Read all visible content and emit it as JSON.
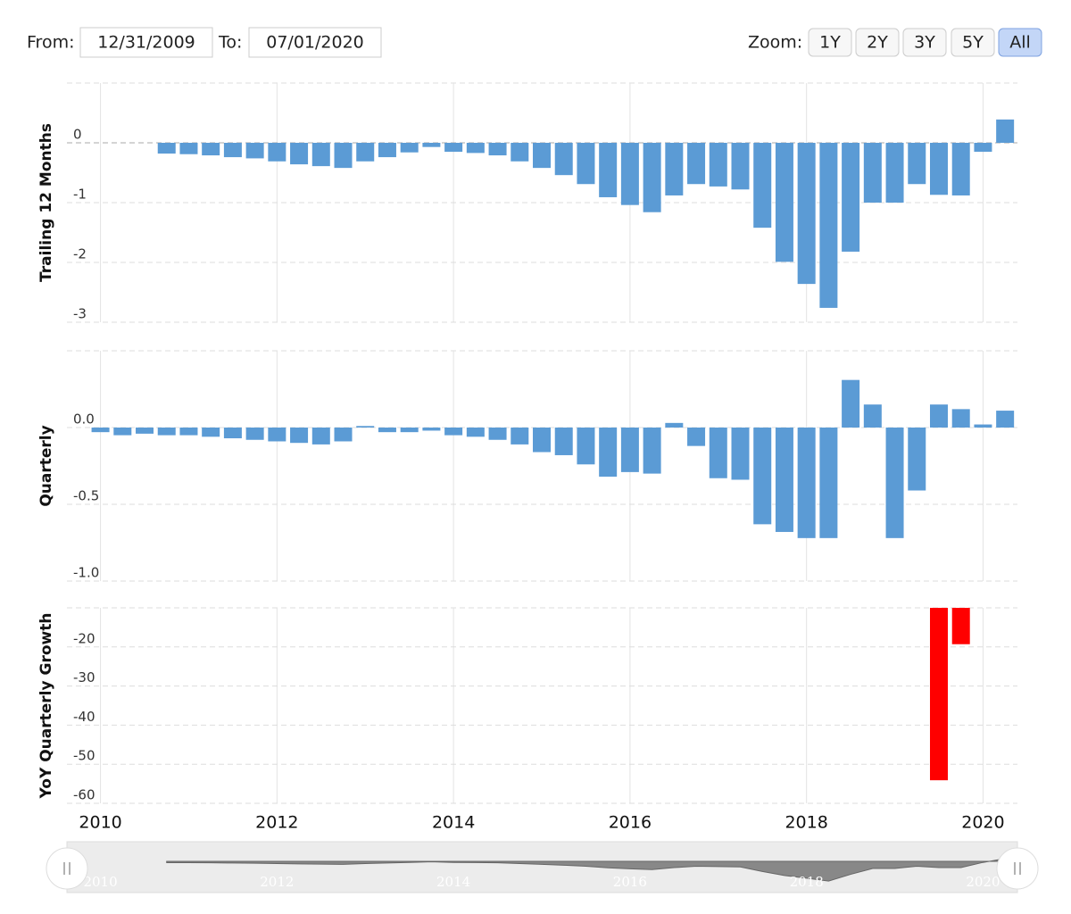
{
  "range_selector": {
    "from_label": "From:",
    "from": "12/31/2009",
    "to_label": "To:",
    "to": "07/01/2020",
    "zoom_label": "Zoom:",
    "buttons": [
      "1Y",
      "2Y",
      "3Y",
      "5Y",
      "All"
    ],
    "selected": 4
  },
  "chart_data": [
    {
      "type": "bar",
      "y_label": "Trailing 12 Months",
      "color": "#5b9bd5",
      "x": [
        2010.75,
        2011,
        2011.25,
        2011.5,
        2011.75,
        2012,
        2012.25,
        2012.5,
        2012.75,
        2013,
        2013.25,
        2013.5,
        2013.75,
        2014,
        2014.25,
        2014.5,
        2014.75,
        2015,
        2015.25,
        2015.5,
        2015.75,
        2016,
        2016.25,
        2016.5,
        2016.75,
        2017,
        2017.25,
        2017.5,
        2017.75,
        2018,
        2018.25,
        2018.5,
        2018.75,
        2019,
        2019.25,
        2019.5,
        2019.75,
        2020,
        2020.25
      ],
      "values": [
        -0.18,
        -0.19,
        -0.21,
        -0.24,
        -0.26,
        -0.31,
        -0.36,
        -0.39,
        -0.42,
        -0.31,
        -0.24,
        -0.16,
        -0.07,
        -0.15,
        -0.17,
        -0.21,
        -0.31,
        -0.42,
        -0.54,
        -0.69,
        -0.91,
        -1.04,
        -1.16,
        -0.88,
        -0.69,
        -0.73,
        -0.78,
        -1.42,
        -1.99,
        -2.36,
        -2.76,
        -1.82,
        -1.0,
        -1.0,
        -0.69,
        -0.87,
        -0.88,
        -0.15,
        0.39
      ],
      "ylim": [
        -3,
        1
      ],
      "yticks": [
        -3,
        -2,
        -1,
        0
      ],
      "xlim": [
        2009.62,
        2020.39
      ],
      "xticks": [
        2010,
        2012,
        2014,
        2016,
        2018,
        2020
      ],
      "grid": true
    },
    {
      "type": "bar",
      "y_label": "Quarterly",
      "color": "#5b9bd5",
      "x": [
        2010,
        2010.25,
        2010.5,
        2010.75,
        2011,
        2011.25,
        2011.5,
        2011.75,
        2012,
        2012.25,
        2012.5,
        2012.75,
        2013,
        2013.25,
        2013.5,
        2013.75,
        2014,
        2014.25,
        2014.5,
        2014.75,
        2015,
        2015.25,
        2015.5,
        2015.75,
        2016,
        2016.25,
        2016.5,
        2016.75,
        2017,
        2017.25,
        2017.5,
        2017.75,
        2018,
        2018.25,
        2018.5,
        2018.75,
        2019,
        2019.25,
        2019.5,
        2019.75,
        2020,
        2020.25
      ],
      "values": [
        -0.03,
        -0.05,
        -0.04,
        -0.05,
        -0.05,
        -0.06,
        -0.07,
        -0.08,
        -0.09,
        -0.1,
        -0.11,
        -0.09,
        0.01,
        -0.03,
        -0.03,
        -0.02,
        -0.05,
        -0.06,
        -0.08,
        -0.11,
        -0.16,
        -0.18,
        -0.24,
        -0.32,
        -0.29,
        -0.3,
        0.03,
        -0.12,
        -0.33,
        -0.34,
        -0.63,
        -0.68,
        -0.72,
        -0.72,
        0.31,
        0.15,
        -0.72,
        -0.41,
        0.15,
        0.12,
        0.02,
        0.11
      ],
      "ylim": [
        -1,
        0.5
      ],
      "yticks": [
        {
          "value": -1,
          "label": "-1.0"
        },
        -0.5,
        {
          "value": 0,
          "label": "0.0"
        }
      ],
      "xlim": [
        2009.62,
        2020.39
      ],
      "xticks": [
        2010,
        2012,
        2014,
        2016,
        2018,
        2020
      ],
      "grid": true
    },
    {
      "type": "bar",
      "y_label": "YoY Quarterly Growth",
      "color": "#ff0000",
      "x": [
        2019.5,
        2019.75
      ],
      "values": [
        -54.1,
        -19.3
      ],
      "ylim": [
        -60,
        -10
      ],
      "yticks": [
        -60,
        -50,
        -40,
        -30,
        -20
      ],
      "xlim": [
        2009.62,
        2020.39
      ],
      "xticks": [
        2010,
        2012,
        2014,
        2016,
        2018,
        2020
      ],
      "grid": true
    }
  ]
}
